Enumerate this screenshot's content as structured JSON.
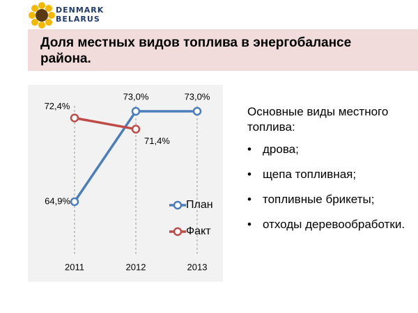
{
  "logo": {
    "line1": "DENMARK",
    "line2": "BELARUS"
  },
  "header": {
    "title": "Доля местных видов топлива в энергобалансе района."
  },
  "chart_data": {
    "type": "line",
    "categories": [
      "2011",
      "2012",
      "2013"
    ],
    "series": [
      {
        "name": "План",
        "color": "#4a7ebb",
        "values": [
          64.9,
          73.0,
          73.0
        ],
        "value_labels": [
          "64,9%",
          "73,0%",
          "73,0%"
        ]
      },
      {
        "name": "Факт",
        "color": "#be4b48",
        "values": [
          72.4,
          71.4,
          null
        ],
        "value_labels": [
          "72,4%",
          "71,4%",
          null
        ]
      }
    ],
    "grid": true
  },
  "text": {
    "heading": "Основные виды местного топлива:",
    "items": [
      "дрова;",
      "щепа топливная;",
      "топливные брикеты;",
      "отходы деревообработки."
    ]
  }
}
